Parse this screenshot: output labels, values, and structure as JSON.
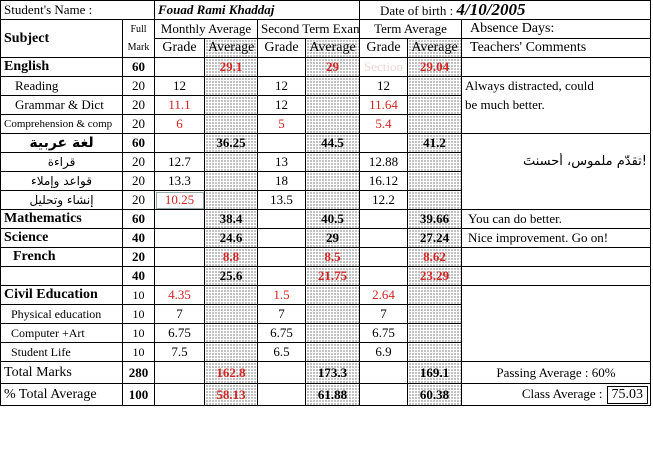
{
  "header": {
    "student_label": "Student's Name   :",
    "student_name": "Fouad Rami Khaddaj",
    "dob_label": "Date of birth :",
    "dob": "4/10/2005"
  },
  "columns": {
    "subject": "Subject",
    "full_mark": "Full Mark",
    "monthly": "Monthly Average",
    "second_term": "Second Term Exam",
    "term_avg": "Term Average",
    "absence": "Absence Days:",
    "grade": "Grade",
    "average": "Average",
    "teachers_comments": "Teachers' Comments"
  },
  "rows": {
    "english": {
      "name": "English",
      "full": "60",
      "m_avg": "29.1",
      "s_avg": "29",
      "t_grade": "Section",
      "t_avg": "29.04"
    },
    "reading": {
      "name": "Reading",
      "full": "20",
      "m_grade": "12",
      "s_grade": "12",
      "t_grade": "12",
      "comment": "Always distracted, could"
    },
    "grammar": {
      "name": "Grammar & Dict",
      "full": "20",
      "m_grade": "11.1",
      "s_grade": "12",
      "t_grade": "11.64",
      "comment": "be much better."
    },
    "comp": {
      "name": "Comprehension & comp",
      "full": "20",
      "m_grade": "6",
      "s_grade": "5",
      "t_grade": "5.4"
    },
    "arabic": {
      "name": "لغة عربية",
      "full": "60",
      "m_avg": "36.25",
      "s_avg": "44.5",
      "t_avg": "41.2"
    },
    "ar_reading": {
      "name": "قراءة",
      "full": "20",
      "m_grade": "12.7",
      "s_grade": "13",
      "t_grade": "12.88",
      "comment": "تقدّم ملموس، أحسنتَ!"
    },
    "ar_grammar": {
      "name": "قواعد وإملاء",
      "full": "20",
      "m_grade": "13.3",
      "s_grade": "18",
      "t_grade": "16.12"
    },
    "ar_comp": {
      "name": "إنشاء وتحليل",
      "full": "20",
      "m_grade": "10.25",
      "s_grade": "13.5",
      "t_grade": "12.2"
    },
    "math": {
      "name": "Mathematics",
      "full": "60",
      "m_avg": "38.4",
      "s_avg": "40.5",
      "t_avg": "39.66",
      "comment": "You can do better."
    },
    "science": {
      "name": "Science",
      "full": "40",
      "m_avg": "24.6",
      "s_avg": "29",
      "t_avg": "27.24",
      "comment": "Nice improvement. Go on!"
    },
    "french": {
      "name": "French",
      "full": "20",
      "m_avg": "8.8",
      "s_avg": "8.5",
      "t_avg": "8.62"
    },
    "blank40": {
      "full": "40",
      "m_avg": "25.6",
      "s_avg": "21.75",
      "t_avg": "23.29"
    },
    "civil": {
      "name": "Civil Education",
      "full": "10",
      "m_grade": "4.35",
      "s_grade": "1.5",
      "t_grade": "2.64"
    },
    "physical": {
      "name": "Physical education",
      "full": "10",
      "m_grade": "7",
      "s_grade": "7",
      "t_grade": "7"
    },
    "computer": {
      "name": "Computer +Art",
      "full": "10",
      "m_grade": "6.75",
      "s_grade": "6.75",
      "t_grade": "6.75"
    },
    "student_life": {
      "name": "Student Life",
      "full": "10",
      "m_grade": "7.5",
      "s_grade": "6.5",
      "t_grade": "6.9"
    },
    "total": {
      "name": "Total Marks",
      "full": "280",
      "m_avg": "162.8",
      "s_avg": "173.3",
      "t_avg": "169.1",
      "comment": "Passing Average : 60%"
    },
    "pct": {
      "name": "% Total Average",
      "full": "100",
      "m_avg": "58.13",
      "s_avg": "61.88",
      "t_avg": "60.38",
      "class_label": "Class Average :",
      "class_value": "75.03"
    }
  }
}
